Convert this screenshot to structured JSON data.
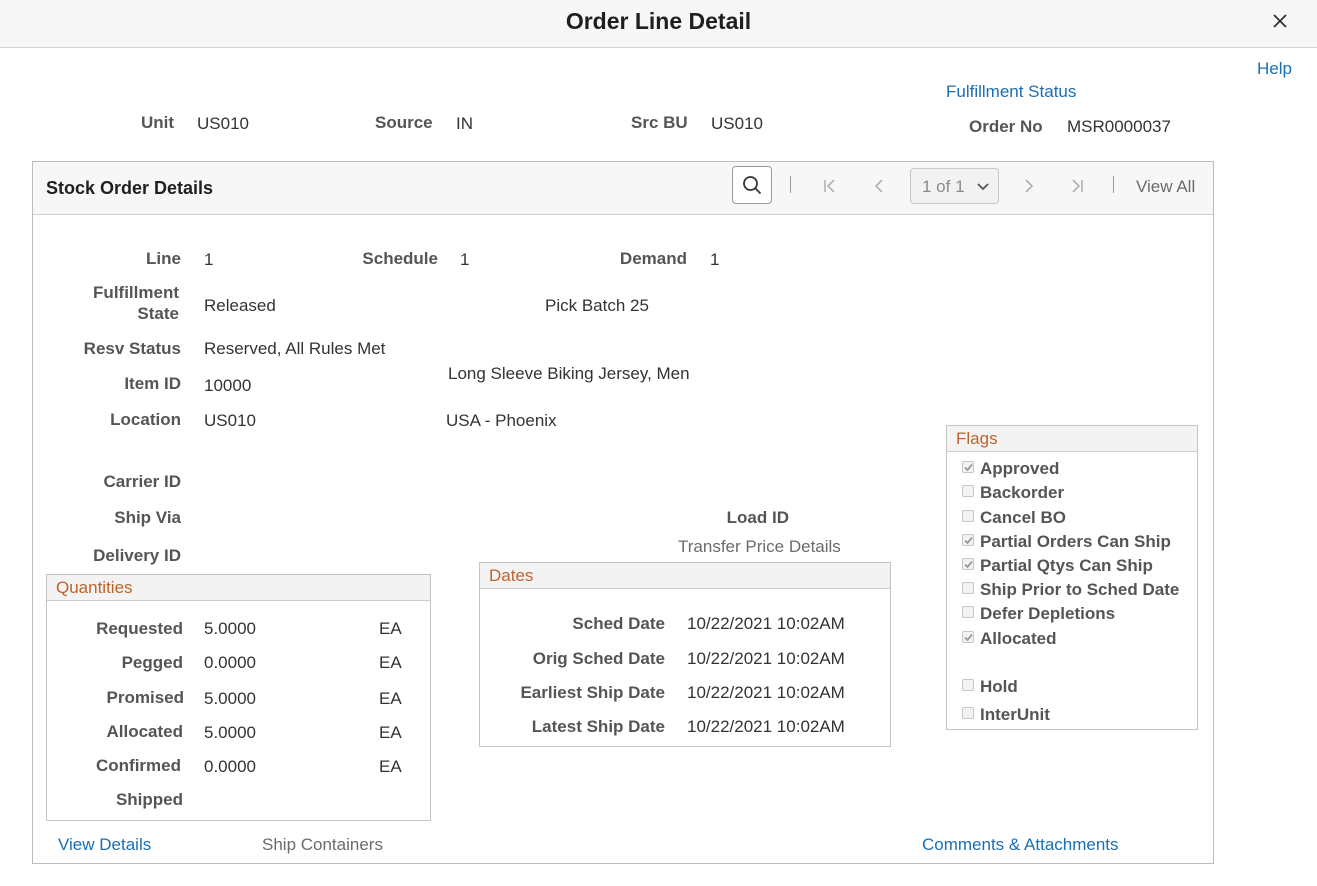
{
  "modal": {
    "title": "Order Line Detail",
    "close_icon": "close-icon"
  },
  "links": {
    "help": "Help",
    "fulfillment_status": "Fulfillment Status",
    "view_details": "View Details",
    "ship_containers": "Ship Containers",
    "comments_attachments": "Comments & Attachments",
    "transfer_price_details": "Transfer Price Details"
  },
  "header": {
    "unit_label": "Unit",
    "unit": "US010",
    "source_label": "Source",
    "source": "IN",
    "src_bu_label": "Src BU",
    "src_bu": "US010",
    "order_no_label": "Order No",
    "order_no": "MSR0000037"
  },
  "panel": {
    "title": "Stock Order Details",
    "page_indicator": "1 of 1",
    "view_all": "View All",
    "icons": [
      "search-icon",
      "first-page-icon",
      "previous-icon",
      "chevron-down-icon",
      "next-icon",
      "last-page-icon"
    ]
  },
  "details": {
    "line_label": "Line",
    "line": "1",
    "schedule_label": "Schedule",
    "schedule": "1",
    "demand_label": "Demand",
    "demand": "1",
    "fulfillment_state_label_1": "Fulfillment",
    "fulfillment_state_label_2": "State",
    "fulfillment_state": "Released",
    "pick_batch": "Pick Batch 25",
    "resv_status_label": "Resv Status",
    "resv_status": "Reserved, All Rules Met",
    "item_id_label": "Item ID",
    "item_id": "10000",
    "item_desc": "Long Sleeve Biking Jersey, Men",
    "location_label": "Location",
    "location": "US010",
    "location_desc": "USA - Phoenix",
    "carrier_id_label": "Carrier ID",
    "ship_via_label": "Ship Via",
    "delivery_id_label": "Delivery ID",
    "load_id_label": "Load ID"
  },
  "quantities": {
    "title": "Quantities",
    "rows": [
      {
        "label": "Requested",
        "value": "5.0000",
        "uom": "EA"
      },
      {
        "label": "Pegged",
        "value": "0.0000",
        "uom": "EA"
      },
      {
        "label": "Promised",
        "value": "5.0000",
        "uom": "EA"
      },
      {
        "label": "Allocated",
        "value": "5.0000",
        "uom": "EA"
      },
      {
        "label": "Confirmed",
        "value": "0.0000",
        "uom": "EA"
      },
      {
        "label": "Shipped",
        "value": "",
        "uom": ""
      }
    ]
  },
  "dates": {
    "title": "Dates",
    "rows": [
      {
        "label": "Sched Date",
        "value": "10/22/2021 10:02AM"
      },
      {
        "label": "Orig Sched Date",
        "value": "10/22/2021 10:02AM"
      },
      {
        "label": "Earliest Ship Date",
        "value": "10/22/2021 10:02AM"
      },
      {
        "label": "Latest Ship Date",
        "value": "10/22/2021 10:02AM"
      }
    ]
  },
  "flags": {
    "title": "Flags",
    "items": [
      {
        "label": "Approved",
        "checked": true
      },
      {
        "label": "Backorder",
        "checked": false
      },
      {
        "label": "Cancel BO",
        "checked": false
      },
      {
        "label": "Partial Orders Can Ship",
        "checked": true
      },
      {
        "label": "Partial Qtys Can Ship",
        "checked": true
      },
      {
        "label": "Ship Prior to Sched Date",
        "checked": false
      },
      {
        "label": "Defer Depletions",
        "checked": false
      },
      {
        "label": "Allocated",
        "checked": true
      },
      {
        "label": "Hold",
        "checked": false
      },
      {
        "label": "InterUnit",
        "checked": false
      }
    ]
  },
  "colors": {
    "link": "#1a6fb3",
    "group_title": "#c0632b"
  }
}
